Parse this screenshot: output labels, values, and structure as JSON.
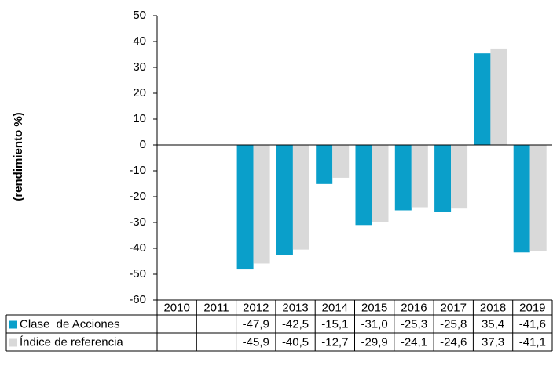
{
  "chart_data": {
    "type": "bar",
    "y_label": "(rendimiento %)",
    "categories": [
      "2010",
      "2011",
      "2012",
      "2013",
      "2014",
      "2015",
      "2016",
      "2017",
      "2018",
      "2019"
    ],
    "series": [
      {
        "name": "Clase  de Acciones",
        "color": "#0a9fca",
        "values": [
          null,
          null,
          -47.9,
          -42.5,
          -15.1,
          -31.0,
          -25.3,
          -25.8,
          35.4,
          -41.6
        ],
        "value_labels": [
          null,
          null,
          "-47,9",
          "-42,5",
          "-15,1",
          "-31,0",
          "-25,3",
          "-25,8",
          "35,4",
          "-41,6"
        ]
      },
      {
        "name": "Índice de referencia",
        "color": "#d9d9d9",
        "values": [
          null,
          null,
          -45.9,
          -40.5,
          -12.7,
          -29.9,
          -24.1,
          -24.6,
          37.3,
          -41.1
        ],
        "value_labels": [
          null,
          null,
          "-45,9",
          "-40,5",
          "-12,7",
          "-29,9",
          "-24,1",
          "-24,6",
          "37,3",
          "-41,1"
        ]
      }
    ],
    "ylim": [
      -60,
      50
    ],
    "yticks": [
      -60,
      -50,
      -40,
      -30,
      -20,
      -10,
      0,
      10,
      20,
      30,
      40,
      50
    ]
  }
}
